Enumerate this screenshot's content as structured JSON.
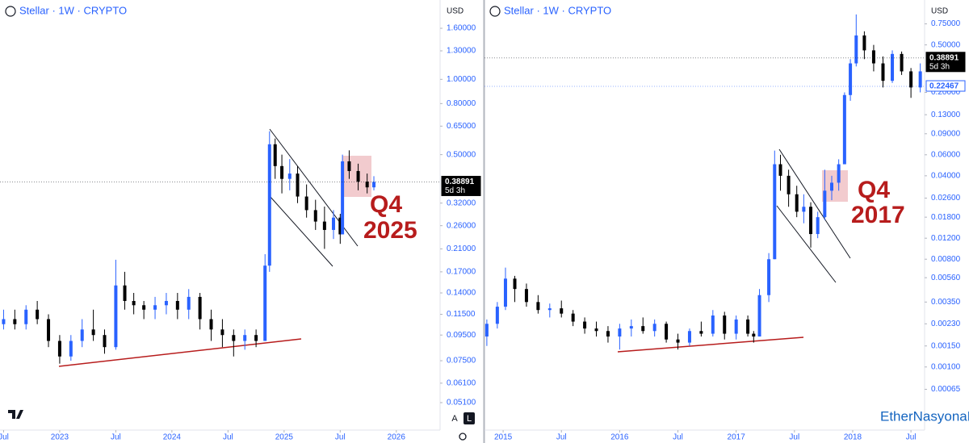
{
  "chart_data": [
    {
      "type": "candlestick",
      "title": "Stellar · 1W · CRYPTO",
      "currency": "USD",
      "log_y": true,
      "grid": false,
      "up_color": "#2962ff",
      "down_color": "#000000",
      "xlim": [
        2022.468,
        2026.39
      ],
      "xticks": [
        {
          "value": 2022.5,
          "label": "Jul"
        },
        2023,
        {
          "value": 2023.5,
          "label": "Jul"
        },
        2024,
        {
          "value": 2024.5,
          "label": "Jul"
        },
        2025,
        {
          "value": 2025.5,
          "label": "Jul"
        },
        2026
      ],
      "ylim": [
        0.0405,
        2.0
      ],
      "yticks": [
        {
          "value": 1.6,
          "label": "1.60000"
        },
        {
          "value": 1.3,
          "label": "1.30000"
        },
        {
          "value": 1.0,
          "label": "1.00000"
        },
        {
          "value": 0.8,
          "label": "0.80000"
        },
        {
          "value": 0.65,
          "label": "0.65000"
        },
        {
          "value": 0.5,
          "label": "0.50000"
        },
        {
          "value": 0.32,
          "label": "0.32000"
        },
        {
          "value": 0.26,
          "label": "0.26000"
        },
        {
          "value": 0.21,
          "label": "0.21000"
        },
        {
          "value": 0.17,
          "label": "0.17000"
        },
        {
          "value": 0.14,
          "label": "0.14000"
        },
        {
          "value": 0.115,
          "label": "0.11500"
        },
        {
          "value": 0.095,
          "label": "0.09500"
        },
        {
          "value": 0.075,
          "label": "0.07500"
        },
        {
          "value": 0.061,
          "label": "0.06100"
        },
        {
          "value": 0.051,
          "label": "0.05100"
        }
      ],
      "x": [
        2022.5,
        2022.6,
        2022.7,
        2022.8,
        2022.9,
        2023.0,
        2023.1,
        2023.2,
        2023.3,
        2023.4,
        2023.5,
        2023.58,
        2023.66,
        2023.75,
        2023.85,
        2023.95,
        2024.05,
        2024.15,
        2024.25,
        2024.35,
        2024.45,
        2024.55,
        2024.65,
        2024.75,
        2024.83,
        2024.87,
        2024.92,
        2024.98,
        2025.05,
        2025.12,
        2025.2,
        2025.28,
        2025.36,
        2025.44,
        2025.5,
        2025.52,
        2025.58,
        2025.66,
        2025.74,
        2025.8
      ],
      "open": [
        0.105,
        0.11,
        0.105,
        0.12,
        0.11,
        0.09,
        0.078,
        0.09,
        0.1,
        0.095,
        0.085,
        0.15,
        0.13,
        0.125,
        0.12,
        0.125,
        0.13,
        0.12,
        0.135,
        0.11,
        0.1,
        0.095,
        0.09,
        0.095,
        0.09,
        0.18,
        0.55,
        0.45,
        0.4,
        0.42,
        0.34,
        0.3,
        0.27,
        0.25,
        0.28,
        0.24,
        0.47,
        0.43,
        0.39,
        0.37
      ],
      "high": [
        0.12,
        0.12,
        0.125,
        0.13,
        0.115,
        0.095,
        0.095,
        0.11,
        0.12,
        0.1,
        0.19,
        0.17,
        0.14,
        0.13,
        0.135,
        0.14,
        0.14,
        0.145,
        0.14,
        0.12,
        0.11,
        0.1,
        0.1,
        0.1,
        0.2,
        0.62,
        0.58,
        0.5,
        0.48,
        0.45,
        0.38,
        0.33,
        0.31,
        0.3,
        0.29,
        0.5,
        0.52,
        0.46,
        0.42,
        0.41
      ],
      "low": [
        0.1,
        0.1,
        0.1,
        0.105,
        0.085,
        0.073,
        0.075,
        0.085,
        0.09,
        0.08,
        0.083,
        0.12,
        0.115,
        0.11,
        0.11,
        0.115,
        0.11,
        0.11,
        0.1,
        0.09,
        0.085,
        0.078,
        0.083,
        0.085,
        0.09,
        0.17,
        0.4,
        0.35,
        0.36,
        0.32,
        0.28,
        0.25,
        0.21,
        0.23,
        0.22,
        0.24,
        0.4,
        0.36,
        0.35,
        0.36
      ],
      "close": [
        0.11,
        0.105,
        0.12,
        0.11,
        0.09,
        0.078,
        0.09,
        0.1,
        0.095,
        0.085,
        0.15,
        0.13,
        0.125,
        0.12,
        0.125,
        0.13,
        0.12,
        0.135,
        0.11,
        0.1,
        0.095,
        0.09,
        0.095,
        0.09,
        0.18,
        0.55,
        0.45,
        0.4,
        0.42,
        0.34,
        0.3,
        0.27,
        0.25,
        0.28,
        0.24,
        0.47,
        0.43,
        0.39,
        0.37,
        0.389
      ],
      "price_tags": [
        {
          "value": 0.38891,
          "label": "0.38891",
          "countdown": "5d 3h",
          "style": "dark"
        }
      ],
      "annotation": [
        "Q4",
        "2025"
      ],
      "scale_buttons": [
        "A",
        "L"
      ]
    },
    {
      "type": "candlestick",
      "title": "Stellar · 1W · CRYPTO",
      "currency": "USD",
      "log_y": true,
      "grid": false,
      "up_color": "#2962ff",
      "down_color": "#000000",
      "xlim": [
        2014.84,
        2018.617
      ],
      "xticks": [
        2015,
        {
          "value": 2015.5,
          "label": "Jul"
        },
        2016,
        {
          "value": 2016.5,
          "label": "Jul"
        },
        2017,
        {
          "value": 2017.5,
          "label": "Jul"
        },
        2018,
        {
          "value": 2018.5,
          "label": "Jul"
        }
      ],
      "ylim": [
        0.00031,
        1.1
      ],
      "yticks": [
        {
          "value": 0.75,
          "label": "0.75000"
        },
        {
          "value": 0.5,
          "label": "0.50000"
        },
        {
          "value": 0.2,
          "label": "0.20000"
        },
        {
          "value": 0.13,
          "label": "0.13000"
        },
        {
          "value": 0.09,
          "label": "0.09000"
        },
        {
          "value": 0.06,
          "label": "0.06000"
        },
        {
          "value": 0.04,
          "label": "0.04000"
        },
        {
          "value": 0.026,
          "label": "0.02600"
        },
        {
          "value": 0.018,
          "label": "0.01800"
        },
        {
          "value": 0.012,
          "label": "0.01200"
        },
        {
          "value": 0.008,
          "label": "0.00800"
        },
        {
          "value": 0.0056,
          "label": "0.00560"
        },
        {
          "value": 0.0035,
          "label": "0.00350"
        },
        {
          "value": 0.0023,
          "label": "0.00230"
        },
        {
          "value": 0.0015,
          "label": "0.00150"
        },
        {
          "value": 0.001,
          "label": "0.00100"
        },
        {
          "value": 0.00065,
          "label": "0.00065"
        }
      ],
      "x": [
        2014.86,
        2014.95,
        2015.02,
        2015.1,
        2015.2,
        2015.3,
        2015.4,
        2015.5,
        2015.6,
        2015.7,
        2015.8,
        2015.9,
        2016.0,
        2016.1,
        2016.2,
        2016.3,
        2016.4,
        2016.5,
        2016.6,
        2016.7,
        2016.8,
        2016.9,
        2017.0,
        2017.1,
        2017.15,
        2017.2,
        2017.28,
        2017.33,
        2017.38,
        2017.45,
        2017.52,
        2017.58,
        2017.64,
        2017.7,
        2017.76,
        2017.82,
        2017.88,
        2017.93,
        2017.98,
        2018.03,
        2018.1,
        2018.18,
        2018.26,
        2018.34,
        2018.42,
        2018.5,
        2018.58
      ],
      "open": [
        0.0018,
        0.0023,
        0.0032,
        0.0055,
        0.0045,
        0.0035,
        0.003,
        0.0031,
        0.0028,
        0.0024,
        0.0021,
        0.002,
        0.0018,
        0.0021,
        0.0022,
        0.002,
        0.0023,
        0.0017,
        0.0016,
        0.002,
        0.0019,
        0.0027,
        0.0019,
        0.0025,
        0.0019,
        0.0018,
        0.004,
        0.008,
        0.05,
        0.04,
        0.028,
        0.02,
        0.022,
        0.013,
        0.018,
        0.03,
        0.035,
        0.05,
        0.19,
        0.35,
        0.6,
        0.45,
        0.35,
        0.25,
        0.42,
        0.3,
        0.22
      ],
      "high": [
        0.0025,
        0.0035,
        0.0068,
        0.0058,
        0.005,
        0.004,
        0.0034,
        0.0036,
        0.003,
        0.0026,
        0.0024,
        0.0022,
        0.0023,
        0.0025,
        0.0026,
        0.0025,
        0.0024,
        0.0019,
        0.0021,
        0.0024,
        0.003,
        0.0029,
        0.0027,
        0.0027,
        0.002,
        0.0045,
        0.009,
        0.065,
        0.06,
        0.045,
        0.033,
        0.028,
        0.024,
        0.02,
        0.045,
        0.04,
        0.055,
        0.2,
        0.38,
        0.9,
        0.65,
        0.5,
        0.4,
        0.45,
        0.44,
        0.32,
        0.35
      ],
      "low": [
        0.0015,
        0.0021,
        0.003,
        0.0035,
        0.0032,
        0.0028,
        0.0026,
        0.0026,
        0.0022,
        0.0019,
        0.0018,
        0.0016,
        0.0014,
        0.0018,
        0.0019,
        0.0018,
        0.0016,
        0.0014,
        0.0015,
        0.0018,
        0.0018,
        0.0017,
        0.0017,
        0.0018,
        0.0016,
        0.0018,
        0.0035,
        0.008,
        0.03,
        0.022,
        0.018,
        0.016,
        0.01,
        0.012,
        0.017,
        0.025,
        0.03,
        0.05,
        0.17,
        0.33,
        0.38,
        0.3,
        0.22,
        0.24,
        0.28,
        0.18,
        0.2
      ],
      "close": [
        0.0023,
        0.0032,
        0.0055,
        0.0045,
        0.0035,
        0.003,
        0.0031,
        0.0028,
        0.0024,
        0.0021,
        0.002,
        0.0018,
        0.0021,
        0.0022,
        0.002,
        0.0023,
        0.0017,
        0.0016,
        0.002,
        0.0019,
        0.0027,
        0.0019,
        0.0025,
        0.0019,
        0.0018,
        0.004,
        0.008,
        0.05,
        0.04,
        0.028,
        0.02,
        0.022,
        0.013,
        0.018,
        0.03,
        0.035,
        0.05,
        0.19,
        0.35,
        0.6,
        0.45,
        0.35,
        0.25,
        0.42,
        0.3,
        0.22,
        0.3
      ],
      "price_tags": [
        {
          "value": 0.38891,
          "label": "0.38891",
          "countdown": "5d 3h",
          "style": "dark"
        },
        {
          "value": 0.22467,
          "label": "0.22467",
          "style": "light"
        }
      ],
      "annotation": [
        "Q4",
        "2017"
      ],
      "watermark": "EtherNasyonaL"
    }
  ]
}
